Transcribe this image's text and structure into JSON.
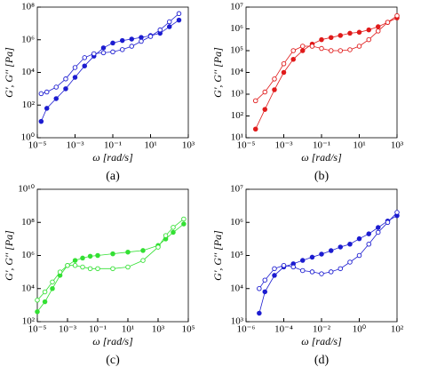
{
  "chart_data": [
    {
      "type": "scatter",
      "caption": "(a)",
      "xlabel": "ω [rad/s]",
      "ylabel": "G', G'' [Pa]",
      "xscale": "log",
      "yscale": "log",
      "xlim": [
        1e-05,
        1000
      ],
      "xticks": [
        {
          "value": 1e-05,
          "label": "10⁻⁵"
        },
        {
          "value": 0.001,
          "label": "10⁻³"
        },
        {
          "value": 0.1,
          "label": "10⁻¹"
        },
        {
          "value": 10,
          "label": "10¹"
        },
        {
          "value": 1000,
          "label": "10³"
        }
      ],
      "ylim": [
        1,
        100000000
      ],
      "yticks": [
        {
          "value": 1,
          "label": "10⁰"
        },
        {
          "value": 100,
          "label": "10²"
        },
        {
          "value": 10000,
          "label": "10⁴"
        },
        {
          "value": 1000000,
          "label": "10⁶"
        },
        {
          "value": 100000000,
          "label": "10⁸"
        }
      ],
      "series": [
        {
          "color": "#1c1cd0",
          "filled": true,
          "x": [
            1.6e-05,
            3.2e-05,
            0.0001,
            0.00032,
            0.001,
            0.0032,
            0.01,
            0.032,
            0.1,
            0.32,
            1,
            3.2,
            10,
            32,
            100,
            320
          ],
          "values": [
            10,
            63,
            250,
            1000,
            5000,
            25000,
            100000,
            320000,
            630000,
            900000,
            1100000,
            1400000,
            1800000,
            2500000,
            6300000,
            16000000
          ]
        },
        {
          "color": "#1c1cd0",
          "filled": false,
          "x": [
            1.6e-05,
            3.2e-05,
            0.0001,
            0.00032,
            0.001,
            0.0032,
            0.01,
            0.032,
            0.1,
            0.32,
            1,
            3.2,
            10,
            32,
            100,
            320
          ],
          "values": [
            500,
            630,
            1260,
            4000,
            20000,
            80000,
            140000,
            160000,
            180000,
            250000,
            400000,
            800000,
            1600000,
            4000000,
            12600000,
            40000000
          ]
        }
      ]
    },
    {
      "type": "scatter",
      "caption": "(b)",
      "xlabel": "ω [rad/s]",
      "ylabel": "G', G'' [Pa]",
      "xscale": "log",
      "yscale": "log",
      "xlim": [
        1e-05,
        1000
      ],
      "xticks": [
        {
          "value": 1e-05,
          "label": "10⁻⁵"
        },
        {
          "value": 0.001,
          "label": "10⁻³"
        },
        {
          "value": 0.1,
          "label": "10⁻¹"
        },
        {
          "value": 10,
          "label": "10¹"
        },
        {
          "value": 1000,
          "label": "10³"
        }
      ],
      "ylim": [
        10,
        10000000
      ],
      "yticks": [
        {
          "value": 10,
          "label": "10¹"
        },
        {
          "value": 100,
          "label": "10²"
        },
        {
          "value": 1000,
          "label": "10³"
        },
        {
          "value": 10000,
          "label": "10⁴"
        },
        {
          "value": 100000,
          "label": "10⁵"
        },
        {
          "value": 1000000,
          "label": "10⁶"
        },
        {
          "value": 10000000,
          "label": "10⁷"
        }
      ],
      "series": [
        {
          "color": "#e01a1a",
          "filled": true,
          "x": [
            3.2e-05,
            0.0001,
            0.00032,
            0.001,
            0.0032,
            0.01,
            0.032,
            0.1,
            0.32,
            1,
            3.2,
            10,
            32,
            100,
            320,
            1000
          ],
          "values": [
            25,
            200,
            1600,
            10000,
            40000,
            100000,
            200000,
            320000,
            400000,
            500000,
            630000,
            700000,
            900000,
            1260000,
            2000000,
            3200000
          ]
        },
        {
          "color": "#e01a1a",
          "filled": false,
          "x": [
            3.2e-05,
            0.0001,
            0.00032,
            0.001,
            0.0032,
            0.01,
            0.032,
            0.1,
            0.32,
            1,
            3.2,
            10,
            32,
            100,
            320,
            1000
          ],
          "values": [
            500,
            1260,
            5000,
            25000,
            100000,
            160000,
            160000,
            126000,
            100000,
            100000,
            110000,
            160000,
            320000,
            800000,
            2000000,
            4000000
          ]
        }
      ]
    },
    {
      "type": "scatter",
      "caption": "(c)",
      "xlabel": "ω [rad/s]",
      "ylabel": "G', G'' [Pa]",
      "xscale": "log",
      "yscale": "log",
      "xlim": [
        1e-05,
        100000
      ],
      "xticks": [
        {
          "value": 1e-05,
          "label": "10⁻⁵"
        },
        {
          "value": 0.001,
          "label": "10⁻³"
        },
        {
          "value": 0.1,
          "label": "10⁻¹"
        },
        {
          "value": 10,
          "label": "10¹"
        },
        {
          "value": 1000,
          "label": "10³"
        },
        {
          "value": 100000,
          "label": "10⁵"
        }
      ],
      "ylim": [
        100,
        10000000000
      ],
      "yticks": [
        {
          "value": 100,
          "label": "10²"
        },
        {
          "value": 10000,
          "label": "10⁴"
        },
        {
          "value": 1000000,
          "label": "10⁶"
        },
        {
          "value": 100000000,
          "label": "10⁸"
        },
        {
          "value": 10000000000,
          "label": "10¹⁰"
        }
      ],
      "series": [
        {
          "color": "#33e033",
          "filled": true,
          "x": [
            1e-05,
            3.2e-05,
            0.0001,
            0.00032,
            0.001,
            0.0032,
            0.01,
            0.032,
            0.1,
            1,
            10,
            100,
            1000,
            3200,
            10000,
            50000
          ],
          "values": [
            400,
            1600,
            10000,
            63000,
            250000,
            500000,
            700000,
            900000,
            1000000,
            1260000,
            1600000,
            2000000,
            4000000,
            10000000,
            25000000,
            80000000
          ]
        },
        {
          "color": "#33e033",
          "filled": false,
          "x": [
            1e-05,
            3.2e-05,
            0.0001,
            0.00032,
            0.001,
            0.0032,
            0.01,
            0.032,
            0.1,
            1,
            10,
            100,
            1000,
            3200,
            10000,
            50000
          ],
          "values": [
            2000,
            6300,
            25000,
            100000,
            250000,
            250000,
            200000,
            160000,
            160000,
            160000,
            200000,
            500000,
            3200000,
            16000000,
            50000000,
            160000000
          ]
        }
      ]
    },
    {
      "type": "scatter",
      "caption": "(d)",
      "xlabel": "ω [rad/s]",
      "ylabel": "G', G'' [Pa]",
      "xscale": "log",
      "yscale": "log",
      "xlim": [
        1e-06,
        100
      ],
      "xticks": [
        {
          "value": 1e-06,
          "label": "10⁻⁶"
        },
        {
          "value": 0.0001,
          "label": "10⁻⁴"
        },
        {
          "value": 0.01,
          "label": "10⁻²"
        },
        {
          "value": 1,
          "label": "10⁰"
        },
        {
          "value": 100,
          "label": "10²"
        }
      ],
      "ylim": [
        1000,
        10000000
      ],
      "yticks": [
        {
          "value": 1000,
          "label": "10³"
        },
        {
          "value": 10000,
          "label": "10⁴"
        },
        {
          "value": 100000,
          "label": "10⁵"
        },
        {
          "value": 1000000,
          "label": "10⁶"
        },
        {
          "value": 10000000,
          "label": "10⁷"
        }
      ],
      "series": [
        {
          "color": "#1c1cd0",
          "filled": true,
          "x": [
            5e-06,
            1e-05,
            3.2e-05,
            0.0001,
            0.00032,
            0.001,
            0.0032,
            0.01,
            0.032,
            0.1,
            0.32,
            1,
            3.2,
            10,
            32,
            100
          ],
          "values": [
            1800,
            8000,
            25000,
            45000,
            56000,
            71000,
            89000,
            110000,
            140000,
            180000,
            220000,
            320000,
            450000,
            700000,
            1100000,
            1600000
          ]
        },
        {
          "color": "#1c1cd0",
          "filled": false,
          "x": [
            5e-06,
            1e-05,
            3.2e-05,
            0.0001,
            0.00032,
            0.001,
            0.0032,
            0.01,
            0.032,
            0.1,
            0.32,
            1,
            3.2,
            10,
            32,
            100
          ],
          "values": [
            10000,
            18000,
            40000,
            50000,
            45000,
            35000,
            32000,
            28000,
            32000,
            40000,
            63000,
            100000,
            220000,
            500000,
            1000000,
            2000000
          ]
        }
      ]
    }
  ]
}
